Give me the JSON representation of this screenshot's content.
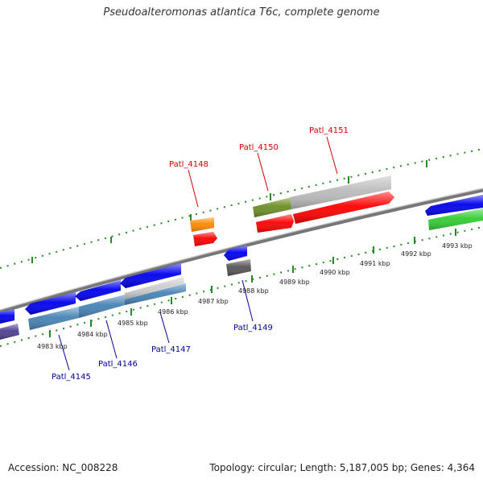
{
  "header": {
    "title": "Pseudoalteromonas atlantica T6c, complete genome"
  },
  "footer": {
    "accession": "Accession: NC_008228",
    "stats": "Topology: circular; Length: 5,187,005 bp; Genes: 4,364"
  },
  "scale": {
    "unit": "kbp",
    "ticks": [
      "4983 kbp",
      "4984 kbp",
      "4985 kbp",
      "4986 kbp",
      "4987 kbp",
      "4988 kbp",
      "4989 kbp",
      "4990 kbp",
      "4991 kbp",
      "4992 kbp",
      "4993 kbp"
    ]
  },
  "genes": {
    "forward": [
      {
        "label": "Patl_4148",
        "color": "#ff8800"
      },
      {
        "label": "Patl_4150",
        "color": "#6b8e23"
      },
      {
        "label": "Patl_4151",
        "color": "#ff0000"
      }
    ],
    "reverse": [
      {
        "label": "Patl_4145",
        "color": "#0000ee"
      },
      {
        "label": "Patl_4146",
        "color": "#4682b4"
      },
      {
        "label": "Patl_4147",
        "color": "#4682b4"
      },
      {
        "label": "Patl_4149",
        "color": "#0000ee"
      }
    ]
  },
  "colors": {
    "forward_label": "#cc0000",
    "reverse_label": "#000099",
    "tick": "#228b22",
    "backbone": "#888888",
    "cds_red": "#ff0000",
    "cds_blue": "#0000ee",
    "cds_green": "#33cc33",
    "cds_grey": "#bbbbbb",
    "cds_dark": "#555555",
    "cds_purple": "#4b3f8f"
  }
}
